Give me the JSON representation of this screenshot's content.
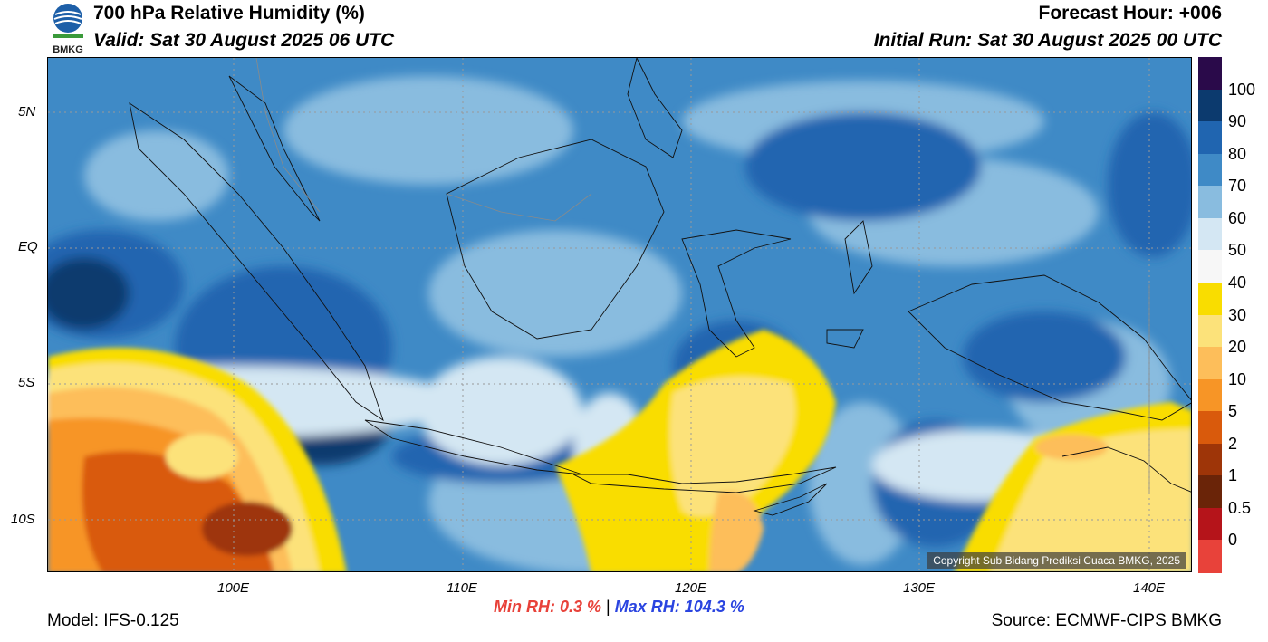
{
  "header": {
    "title": "700 hPa Relative Humidity (%)",
    "valid": "Valid: Sat 30 August 2025 06 UTC",
    "forecast_hour": "Forecast Hour: +006",
    "initial_run": "Initial Run: Sat 30 August 2025 00 UTC",
    "logo_text": "BMKG"
  },
  "axes": {
    "lat_labels": [
      "5N",
      "EQ",
      "5S",
      "10S"
    ],
    "lon_labels": [
      "100E",
      "110E",
      "120E",
      "130E",
      "140E"
    ]
  },
  "colorbar": {
    "labels": [
      "100",
      "90",
      "80",
      "70",
      "60",
      "50",
      "40",
      "30",
      "20",
      "10",
      "5",
      "2",
      "1",
      "0.5",
      "0"
    ],
    "colors": [
      "#2a0a4a",
      "#0c3a6e",
      "#2065b0",
      "#3f8ac6",
      "#89bcdf",
      "#d4e7f3",
      "#f7f7f7",
      "#f9dd00",
      "#fce27a",
      "#fdbe5a",
      "#f79526",
      "#d95a0c",
      "#9e3508",
      "#6a2408",
      "#b5141a",
      "#e8423a"
    ]
  },
  "footer": {
    "model": "Model: IFS-0.125",
    "source": "Source: ECMWF-CIPS BMKG",
    "min_label": "Min RH:",
    "min_value": "0.3 %",
    "separator": "|",
    "max_label": "Max RH:",
    "max_value": "104.3 %",
    "copyright": "Copyright Sub Bidang Prediksi Cuaca BMKG, 2025"
  }
}
